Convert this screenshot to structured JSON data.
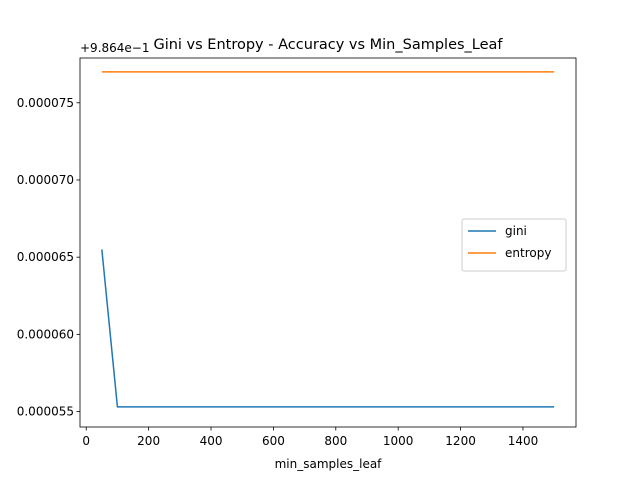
{
  "chart_data": {
    "type": "line",
    "title": "Gini vs Entropy - Accuracy vs Min_Samples_Leaf",
    "xlabel": "min_samples_leaf",
    "ylabel": "",
    "y_offset_label": "+9.864e−1",
    "x": [
      50,
      100,
      150,
      200,
      250,
      300,
      350,
      400,
      450,
      500,
      550,
      600,
      650,
      700,
      750,
      800,
      850,
      900,
      950,
      1000,
      1050,
      1100,
      1150,
      1200,
      1250,
      1300,
      1350,
      1400,
      1450,
      1500
    ],
    "series": [
      {
        "name": "gini",
        "color": "#1f77b4",
        "values": [
          6.55e-05,
          5.53e-05,
          5.53e-05,
          5.53e-05,
          5.53e-05,
          5.53e-05,
          5.53e-05,
          5.53e-05,
          5.53e-05,
          5.53e-05,
          5.53e-05,
          5.53e-05,
          5.53e-05,
          5.53e-05,
          5.53e-05,
          5.53e-05,
          5.53e-05,
          5.53e-05,
          5.53e-05,
          5.53e-05,
          5.53e-05,
          5.53e-05,
          5.53e-05,
          5.53e-05,
          5.53e-05,
          5.53e-05,
          5.53e-05,
          5.53e-05,
          5.53e-05,
          5.53e-05
        ]
      },
      {
        "name": "entropy",
        "color": "#ff7f0e",
        "values": [
          7.7e-05,
          7.7e-05,
          7.7e-05,
          7.7e-05,
          7.7e-05,
          7.7e-05,
          7.7e-05,
          7.7e-05,
          7.7e-05,
          7.7e-05,
          7.7e-05,
          7.7e-05,
          7.7e-05,
          7.7e-05,
          7.7e-05,
          7.7e-05,
          7.7e-05,
          7.7e-05,
          7.7e-05,
          7.7e-05,
          7.7e-05,
          7.7e-05,
          7.7e-05,
          7.7e-05,
          7.7e-05,
          7.7e-05,
          7.7e-05,
          7.7e-05,
          7.7e-05,
          7.7e-05
        ]
      }
    ],
    "xlim": [
      -20,
      1570
    ],
    "ylim": [
      5.4e-05,
      7.79e-05
    ],
    "x_ticks": [
      0,
      200,
      400,
      600,
      800,
      1000,
      1200,
      1400
    ],
    "x_tick_labels": [
      "0",
      "200",
      "400",
      "600",
      "800",
      "1000",
      "1200",
      "1400"
    ],
    "y_ticks": [
      5.5e-05,
      6e-05,
      6.5e-05,
      7e-05,
      7.5e-05
    ],
    "y_tick_labels": [
      "0.000055",
      "0.000060",
      "0.000065",
      "0.000070",
      "0.000075"
    ],
    "grid": false,
    "legend_position": "center-right"
  }
}
